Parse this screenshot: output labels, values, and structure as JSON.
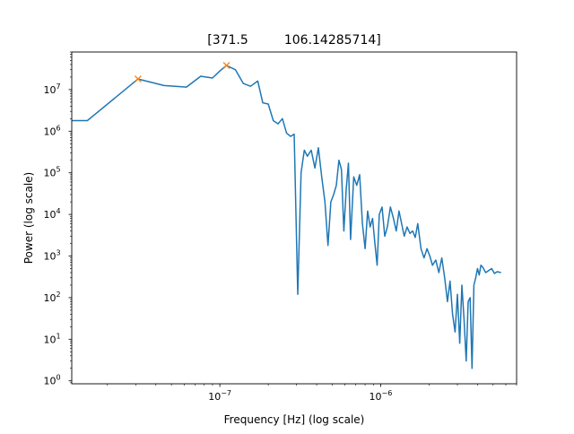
{
  "chart_data": {
    "type": "line",
    "title": "[371.5         106.14285714]",
    "xlabel": "Frequency [Hz] (log scale)",
    "ylabel": "Power (log scale)",
    "x_scale": "log",
    "y_scale": "log",
    "xlim": [
      1.2e-08,
      7e-06
    ],
    "ylim": [
      0.85,
      80000000.0
    ],
    "x_major_ticks": [
      {
        "value": 1e-07,
        "label": "10",
        "exp": "−7"
      },
      {
        "value": 1e-06,
        "label": "10",
        "exp": "−6"
      }
    ],
    "y_major_ticks": [
      {
        "value": 1,
        "label": "10",
        "exp": "0"
      },
      {
        "value": 10,
        "label": "10",
        "exp": "1"
      },
      {
        "value": 100,
        "label": "10",
        "exp": "2"
      },
      {
        "value": 1000,
        "label": "10",
        "exp": "3"
      },
      {
        "value": 10000,
        "label": "10",
        "exp": "4"
      },
      {
        "value": 100000,
        "label": "10",
        "exp": "5"
      },
      {
        "value": 1000000,
        "label": "10",
        "exp": "6"
      },
      {
        "value": 10000000,
        "label": "10",
        "exp": "7"
      }
    ],
    "grid": false,
    "series": [
      {
        "color": "#1f77b4",
        "marker": "none",
        "x": [
          1.2e-08,
          1.5e-08,
          3.1e-08,
          4.5e-08,
          6.2e-08,
          7.6e-08,
          9e-08,
          1e-07,
          1.1e-07,
          1.25e-07,
          1.4e-07,
          1.55e-07,
          1.72e-07,
          1.85e-07,
          2e-07,
          2.15e-07,
          2.3e-07,
          2.45e-07,
          2.6e-07,
          2.75e-07,
          2.9e-07,
          3.05e-07,
          3.2e-07,
          3.35e-07,
          3.5e-07,
          3.7e-07,
          3.9e-07,
          4.1e-07,
          4.3e-07,
          4.5e-07,
          4.7e-07,
          4.9e-07,
          5.1e-07,
          5.3e-07,
          5.5e-07,
          5.7e-07,
          5.9e-07,
          6.1e-07,
          6.3e-07,
          6.5e-07,
          6.8e-07,
          7.1e-07,
          7.4e-07,
          7.7e-07,
          8e-07,
          8.3e-07,
          8.6e-07,
          8.9e-07,
          9.2e-07,
          9.5e-07,
          9.8e-07,
          1.02e-06,
          1.06e-06,
          1.1e-06,
          1.15e-06,
          1.2e-06,
          1.25e-06,
          1.3e-06,
          1.35e-06,
          1.4e-06,
          1.46e-06,
          1.52e-06,
          1.58e-06,
          1.64e-06,
          1.7e-06,
          1.78e-06,
          1.86e-06,
          1.94e-06,
          2.02e-06,
          2.1e-06,
          2.2e-06,
          2.3e-06,
          2.4e-06,
          2.5e-06,
          2.6e-06,
          2.7e-06,
          2.8e-06,
          2.9e-06,
          3e-06,
          3.1e-06,
          3.2e-06,
          3.3e-06,
          3.4e-06,
          3.5e-06,
          3.6e-06,
          3.7e-06,
          3.8e-06,
          3.9e-06,
          4e-06,
          4.1e-06,
          4.2e-06,
          4.3e-06,
          4.5e-06,
          4.7e-06,
          4.9e-06,
          5.1e-06,
          5.3e-06,
          5.6e-06
        ],
        "y": [
          1800000,
          1800000,
          18000000,
          12500000,
          11500000,
          21000000,
          19000000,
          28000000,
          38000000,
          30000000,
          14000000,
          12000000,
          16000000,
          4800000,
          4500000,
          1800000,
          1500000,
          2000000,
          900000,
          750000,
          850000,
          120,
          100000,
          350000,
          250000,
          350000,
          130000,
          400000,
          80000,
          20000,
          1800,
          20000,
          30000,
          50000,
          200000,
          120000,
          4000,
          40000,
          170000,
          2500,
          80000,
          50000,
          90000,
          6000,
          1500,
          12000,
          5000,
          8000,
          2000,
          600,
          10000,
          15000,
          3000,
          5000,
          15000,
          8000,
          4000,
          12000,
          6000,
          3000,
          5000,
          3500,
          4000,
          2800,
          6000,
          1500,
          900,
          1500,
          1000,
          600,
          800,
          400,
          900,
          300,
          80,
          250,
          40,
          15,
          120,
          8,
          200,
          30,
          3,
          80,
          100,
          2,
          200,
          300,
          500,
          350,
          600,
          550,
          400,
          450,
          500,
          380,
          420,
          400
        ]
      },
      {
        "color": "#ff7f0e",
        "marker": "x",
        "line": "none",
        "x": [
          3.1e-08,
          1.1e-07
        ],
        "y": [
          18000000,
          38000000
        ]
      }
    ]
  }
}
